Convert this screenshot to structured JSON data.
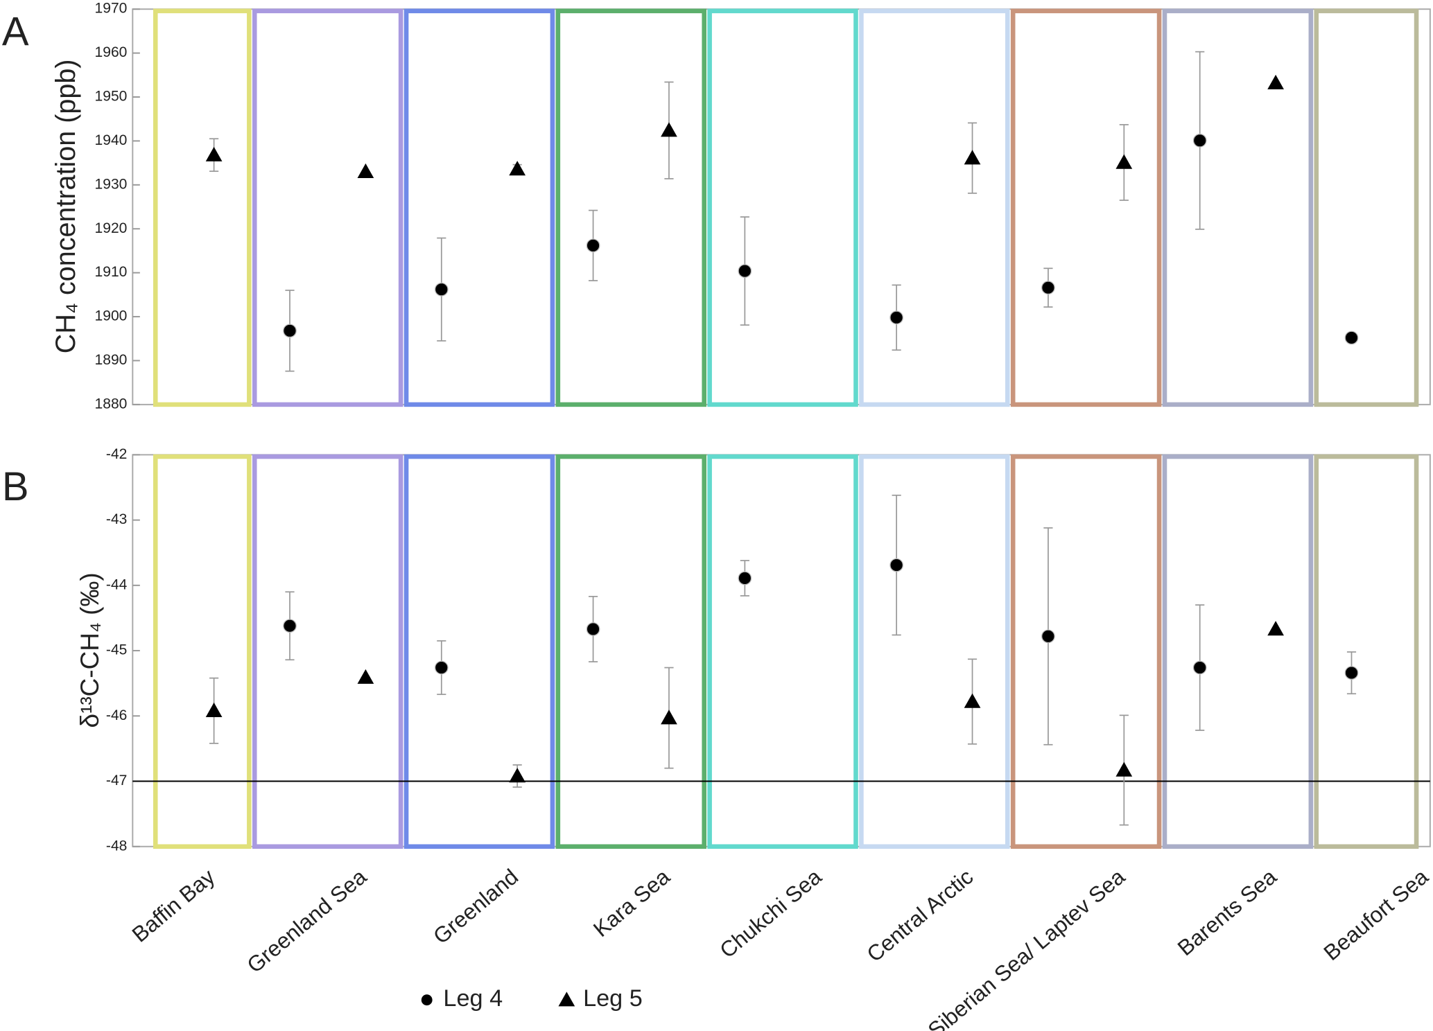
{
  "chart_data": [
    {
      "type": "scatter",
      "panel_label": "A",
      "ylabel": "CH₄ concentration (ppb)",
      "ylim": [
        1880,
        1970
      ],
      "yticks": [
        1880,
        1890,
        1900,
        1910,
        1920,
        1930,
        1940,
        1950,
        1960,
        1970
      ],
      "box_colors": [
        "#e0e07a",
        "#a99ae0",
        "#6f8ae8",
        "#5caf6c",
        "#62d9cd",
        "#c6d9f1",
        "#c9957c",
        "#aaaec8",
        "#bbbb9b"
      ],
      "series": [
        {
          "marker": "circle",
          "color": "#000000",
          "values": [
            null,
            1896.8,
            1906.2,
            1916.2,
            1910.4,
            1899.8,
            1906.6,
            1940.1,
            1895.2
          ],
          "errors": [
            null,
            9.2,
            11.7,
            8,
            12.3,
            7.4,
            4.4,
            20.2,
            null
          ]
        },
        {
          "marker": "triangle",
          "color": "#000000",
          "values": [
            1936.8,
            1933,
            1933.6,
            1942.4,
            null,
            1936.1,
            1935.1,
            1953.2,
            null
          ],
          "errors": [
            3.7,
            null,
            1,
            11,
            null,
            8,
            8.6,
            null,
            null
          ]
        }
      ]
    },
    {
      "type": "scatter",
      "panel_label": "B",
      "ylabel": "δ¹³C-CH₄ (‰)",
      "ylim": [
        -48,
        -42
      ],
      "yticks": [
        -48,
        -47,
        -46,
        -45,
        -44,
        -43,
        -42
      ],
      "hline": -47,
      "categories": [
        "Baffin Bay",
        "Greenland Sea",
        "Greenland",
        "Kara Sea",
        "Chukchi Sea",
        "Central Arctic",
        "East Siberian Sea/ Laptev Sea",
        "Barents Sea",
        "Beaufort Sea"
      ],
      "box_colors": [
        "#e0e07a",
        "#a99ae0",
        "#6f8ae8",
        "#5caf6c",
        "#62d9cd",
        "#c6d9f1",
        "#c9957c",
        "#aaaec8",
        "#bbbb9b"
      ],
      "series": [
        {
          "name": "Leg 4",
          "marker": "circle",
          "color": "#000000",
          "values": [
            null,
            -44.62,
            -45.26,
            -44.67,
            -43.89,
            -43.69,
            -44.78,
            -45.26,
            -45.34
          ],
          "errors": [
            null,
            0.52,
            0.41,
            0.5,
            0.27,
            1.07,
            1.66,
            0.96,
            0.32
          ]
        },
        {
          "name": "Leg 5",
          "marker": "triangle",
          "color": "#000000",
          "values": [
            -45.92,
            -45.41,
            -46.92,
            -46.03,
            null,
            -45.78,
            -46.83,
            -44.67,
            null
          ],
          "errors": [
            0.5,
            null,
            0.17,
            0.77,
            null,
            0.65,
            0.84,
            null,
            null
          ]
        }
      ]
    }
  ]
}
